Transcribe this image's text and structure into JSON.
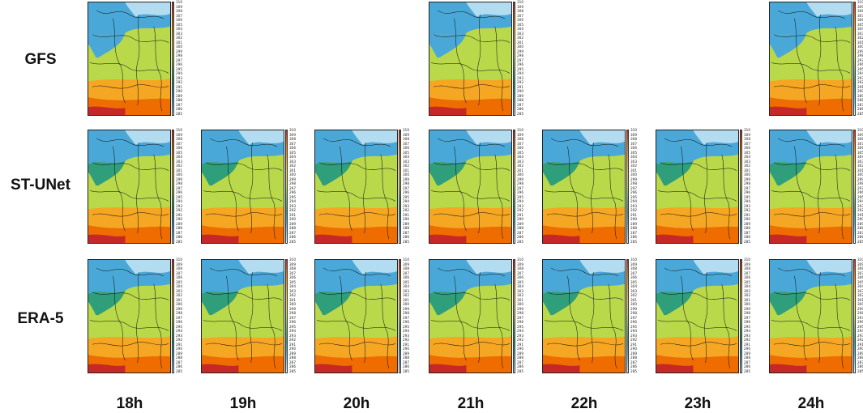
{
  "rows": [
    {
      "label": "GFS"
    },
    {
      "label": "ST-UNet"
    },
    {
      "label": "ERA-5"
    }
  ],
  "columns": [
    {
      "label": "18h"
    },
    {
      "label": "19h"
    },
    {
      "label": "20h"
    },
    {
      "label": "21h"
    },
    {
      "label": "22h"
    },
    {
      "label": "23h"
    },
    {
      "label": "24h"
    }
  ],
  "panels_present": {
    "GFS": [
      "18h",
      "21h",
      "24h"
    ],
    "ST-UNet": [
      "18h",
      "19h",
      "20h",
      "21h",
      "22h",
      "23h",
      "24h"
    ],
    "ERA-5": [
      "18h",
      "19h",
      "20h",
      "21h",
      "22h",
      "23h",
      "24h"
    ]
  },
  "colorbar": {
    "ticks": [
      "310",
      "309",
      "308",
      "307",
      "306",
      "305",
      "304",
      "303",
      "302",
      "301",
      "300",
      "299",
      "298",
      "297",
      "296",
      "295",
      "294",
      "293",
      "292",
      "291",
      "290",
      "289",
      "288",
      "287",
      "286",
      "285"
    ],
    "colors": {
      "high": "#c62828",
      "warm": "#f5a623",
      "mid": "#b9d84a",
      "cool": "#2e9e7b",
      "cold": "#4aa8d8",
      "coldest": "#e0f2fb"
    }
  }
}
